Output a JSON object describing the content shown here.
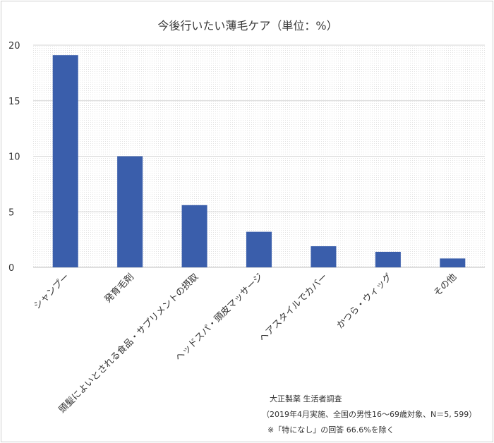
{
  "chart_data": {
    "type": "bar",
    "title": "今後行いたい薄毛ケア（単位：%）",
    "categories": [
      "シャンプー",
      "発育毛剤",
      "頭髪によいとされる食品・サプリメントの摂取",
      "ヘッドスパ・頭皮マッサージ",
      "ヘアスタイルでカバー",
      "かつら・ウィッグ",
      "その他"
    ],
    "values": [
      19.1,
      10.0,
      5.6,
      3.2,
      1.9,
      1.4,
      0.8
    ],
    "ylim": [
      0,
      20
    ],
    "yticks": [
      0,
      5,
      10,
      15,
      20
    ],
    "grid": true,
    "bar_color": "#3a5eab",
    "xlabel": "",
    "ylabel": ""
  },
  "notes": {
    "source": "大正製薬 生活者調査",
    "survey": "（2019年4月実施、全国の男性16～69歳対象、N＝5, 599）",
    "exclusion": "※「特になし」の回答 66.6%を除く"
  }
}
